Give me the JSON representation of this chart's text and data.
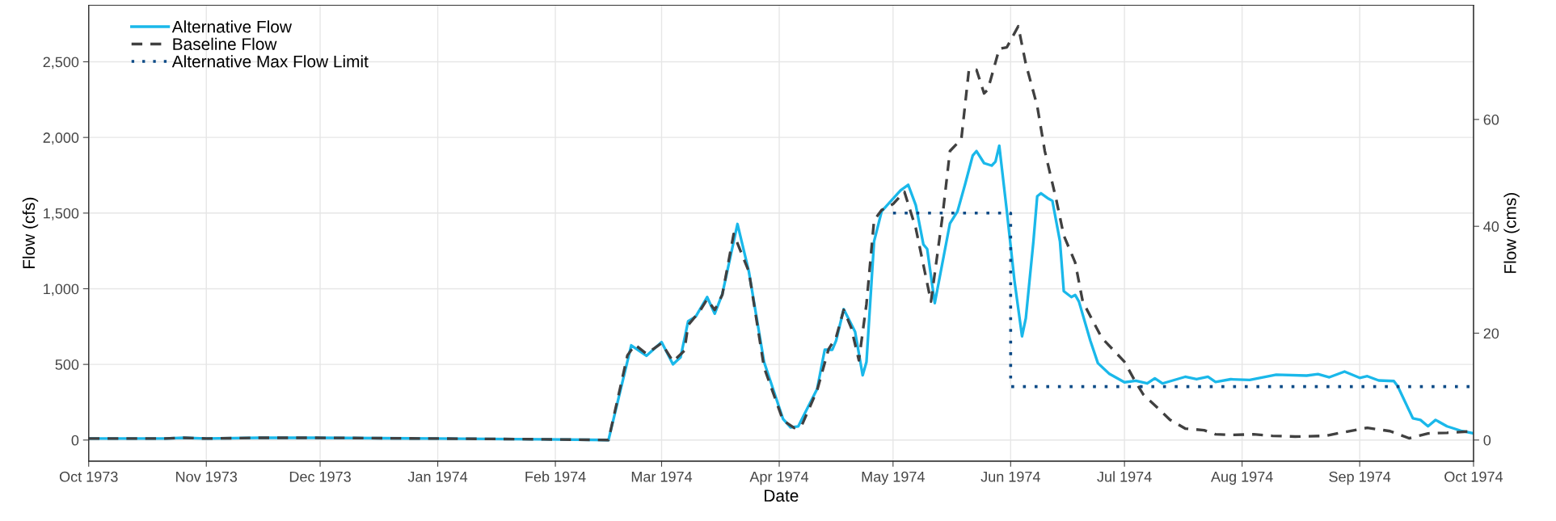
{
  "chart_data": {
    "type": "line",
    "xlabel": "Date",
    "ylabel": "Flow (cfs)",
    "y2label": "Flow (cms)",
    "xlim": [
      "1973-10-01",
      "1974-10-01"
    ],
    "xticks": [
      {
        "value": "1973-10-01",
        "label": "Oct 1973"
      },
      {
        "value": "1973-11-01",
        "label": "Nov 1973"
      },
      {
        "value": "1973-12-01",
        "label": "Dec 1973"
      },
      {
        "value": "1974-01-01",
        "label": "Jan 1974"
      },
      {
        "value": "1974-02-01",
        "label": "Feb 1974"
      },
      {
        "value": "1974-03-01",
        "label": "Mar 1974"
      },
      {
        "value": "1974-04-01",
        "label": "Apr 1974"
      },
      {
        "value": "1974-05-01",
        "label": "May 1974"
      },
      {
        "value": "1974-06-01",
        "label": "Jun 1974"
      },
      {
        "value": "1974-07-01",
        "label": "Jul 1974"
      },
      {
        "value": "1974-08-01",
        "label": "Aug 1974"
      },
      {
        "value": "1974-09-01",
        "label": "Sep 1974"
      },
      {
        "value": "1974-10-01",
        "label": "Oct 1974"
      }
    ],
    "ylim": [
      -139,
      2874
    ],
    "yticks": [
      {
        "value": 0,
        "label": "0"
      },
      {
        "value": 500,
        "label": "500"
      },
      {
        "value": 1000,
        "label": "1,000"
      },
      {
        "value": 1500,
        "label": "1,500"
      },
      {
        "value": 2000,
        "label": "2,000"
      },
      {
        "value": 2500,
        "label": "2,500"
      }
    ],
    "y2lim": [
      -3.94,
      81.38
    ],
    "y2ticks": [
      0,
      20,
      40,
      60
    ],
    "grid": true,
    "legend": "top left",
    "marker": "none",
    "series": [
      {
        "name": "Alternative Flow",
        "color": "#1ab8ea",
        "line_style": "solid",
        "x": [
          "1973-10-01",
          "1973-10-21",
          "1973-10-26",
          "1973-11-01",
          "1973-11-15",
          "1973-11-30",
          "1973-12-31",
          "1974-01-29",
          "1974-02-15",
          "1974-02-21",
          "1974-02-25",
          "1974-03-01",
          "1974-03-04",
          "1974-03-06",
          "1974-03-08",
          "1974-03-10",
          "1974-03-13",
          "1974-03-15",
          "1974-03-17",
          "1974-03-21",
          "1974-03-24",
          "1974-03-28",
          "1974-04-02",
          "1974-04-04",
          "1974-04-06",
          "1974-04-11",
          "1974-04-13",
          "1974-04-15",
          "1974-04-16",
          "1974-04-18",
          "1974-04-21",
          "1974-04-23",
          "1974-04-24",
          "1974-04-26",
          "1974-04-28",
          "1974-05-03",
          "1974-05-05",
          "1974-05-07",
          "1974-05-09",
          "1974-05-10",
          "1974-05-12",
          "1974-05-16",
          "1974-05-18",
          "1974-05-20",
          "1974-05-22",
          "1974-05-23",
          "1974-05-25",
          "1974-05-27",
          "1974-05-28",
          "1974-05-29",
          "1974-05-31",
          "1974-06-02",
          "1974-06-04",
          "1974-06-05",
          "1974-06-07",
          "1974-06-08",
          "1974-06-09",
          "1974-06-11",
          "1974-06-12",
          "1974-06-14",
          "1974-06-15",
          "1974-06-17",
          "1974-06-18",
          "1974-06-19",
          "1974-06-22",
          "1974-06-24",
          "1974-06-27",
          "1974-07-01",
          "1974-07-04",
          "1974-07-07",
          "1974-07-09",
          "1974-07-11",
          "1974-07-17",
          "1974-07-20",
          "1974-07-23",
          "1974-07-25",
          "1974-07-29",
          "1974-08-03",
          "1974-08-10",
          "1974-08-18",
          "1974-08-21",
          "1974-08-24",
          "1974-08-28",
          "1974-09-01",
          "1974-09-03",
          "1974-09-06",
          "1974-09-10",
          "1974-09-11",
          "1974-09-15",
          "1974-09-17",
          "1974-09-19",
          "1974-09-21",
          "1974-09-24",
          "1974-09-28",
          "1974-10-01"
        ],
        "values": [
          10,
          10,
          15,
          10,
          15,
          15,
          10,
          5,
          0,
          626,
          557,
          647,
          501,
          547,
          786,
          816,
          945,
          835,
          965,
          1428,
          1114,
          517,
          140,
          84,
          90,
          338,
          597,
          597,
          657,
          865,
          716,
          428,
          517,
          1313,
          1512,
          1651,
          1687,
          1552,
          1293,
          1263,
          905,
          1432,
          1512,
          1691,
          1880,
          1910,
          1830,
          1814,
          1840,
          1945,
          1512,
          1054,
          686,
          806,
          1313,
          1611,
          1631,
          1595,
          1581,
          1313,
          984,
          945,
          959,
          915,
          657,
          508,
          438,
          382,
          392,
          374,
          408,
          374,
          418,
          402,
          418,
          384,
          402,
          397,
          432,
          426,
          436,
          415,
          453,
          411,
          422,
          394,
          390,
          357,
          144,
          133,
          91,
          133,
          91,
          59,
          44
        ]
      },
      {
        "name": "Baseline Flow",
        "color": "#404040",
        "line_style": "dashed",
        "x": [
          "1973-10-01",
          "1973-10-21",
          "1973-10-26",
          "1973-11-01",
          "1973-11-15",
          "1973-11-30",
          "1973-12-31",
          "1974-01-29",
          "1974-02-15",
          "1974-02-20",
          "1974-02-22",
          "1974-02-25",
          "1974-03-01",
          "1974-03-04",
          "1974-03-07",
          "1974-03-08",
          "1974-03-11",
          "1974-03-13",
          "1974-03-15",
          "1974-03-17",
          "1974-03-20",
          "1974-03-24",
          "1974-03-28",
          "1974-04-02",
          "1974-04-05",
          "1974-04-07",
          "1974-04-11",
          "1974-04-14",
          "1974-04-16",
          "1974-04-18",
          "1974-04-20",
          "1974-04-22",
          "1974-04-24",
          "1974-04-26",
          "1974-04-28",
          "1974-05-01",
          "1974-05-04",
          "1974-05-07",
          "1974-05-11",
          "1974-05-14",
          "1974-05-16",
          "1974-05-19",
          "1974-05-21",
          "1974-05-23",
          "1974-05-25",
          "1974-05-26",
          "1974-05-29",
          "1974-05-31",
          "1974-06-03",
          "1974-06-05",
          "1974-06-08",
          "1974-06-10",
          "1974-06-13",
          "1974-06-15",
          "1974-06-18",
          "1974-06-20",
          "1974-06-25",
          "1974-06-28",
          "1974-07-01",
          "1974-07-04",
          "1974-07-06",
          "1974-07-09",
          "1974-07-13",
          "1974-07-17",
          "1974-07-22",
          "1974-07-25",
          "1974-07-29",
          "1974-08-04",
          "1974-08-09",
          "1974-08-15",
          "1974-08-23",
          "1974-08-28",
          "1974-09-03",
          "1974-09-09",
          "1974-09-14",
          "1974-09-19",
          "1974-09-24",
          "1974-10-01"
        ],
        "values": [
          10,
          10,
          15,
          10,
          15,
          15,
          10,
          5,
          0,
          560,
          630,
          570,
          640,
          520,
          590,
          760,
          850,
          930,
          860,
          960,
          1362,
          1114,
          480,
          130,
          80,
          100,
          330,
          600,
          680,
          860,
          740,
          527,
          900,
          1452,
          1520,
          1560,
          1641,
          1400,
          915,
          1472,
          1910,
          1989,
          2447,
          2447,
          2291,
          2317,
          2586,
          2596,
          2735,
          2486,
          2208,
          1910,
          1591,
          1352,
          1174,
          915,
          676,
          597,
          517,
          380,
          300,
          230,
          134,
          76,
          65,
          38,
          34,
          38,
          28,
          23,
          28,
          53,
          81,
          59,
          12,
          44,
          48,
          59
        ]
      },
      {
        "name": "Alternative Max Flow Limit",
        "color": "#0b4a86",
        "line_style": "dotted",
        "type": "step",
        "x": [
          "1974-05-01",
          "1974-06-01",
          "1974-10-01"
        ],
        "values": [
          1500,
          353,
          353
        ]
      }
    ]
  }
}
